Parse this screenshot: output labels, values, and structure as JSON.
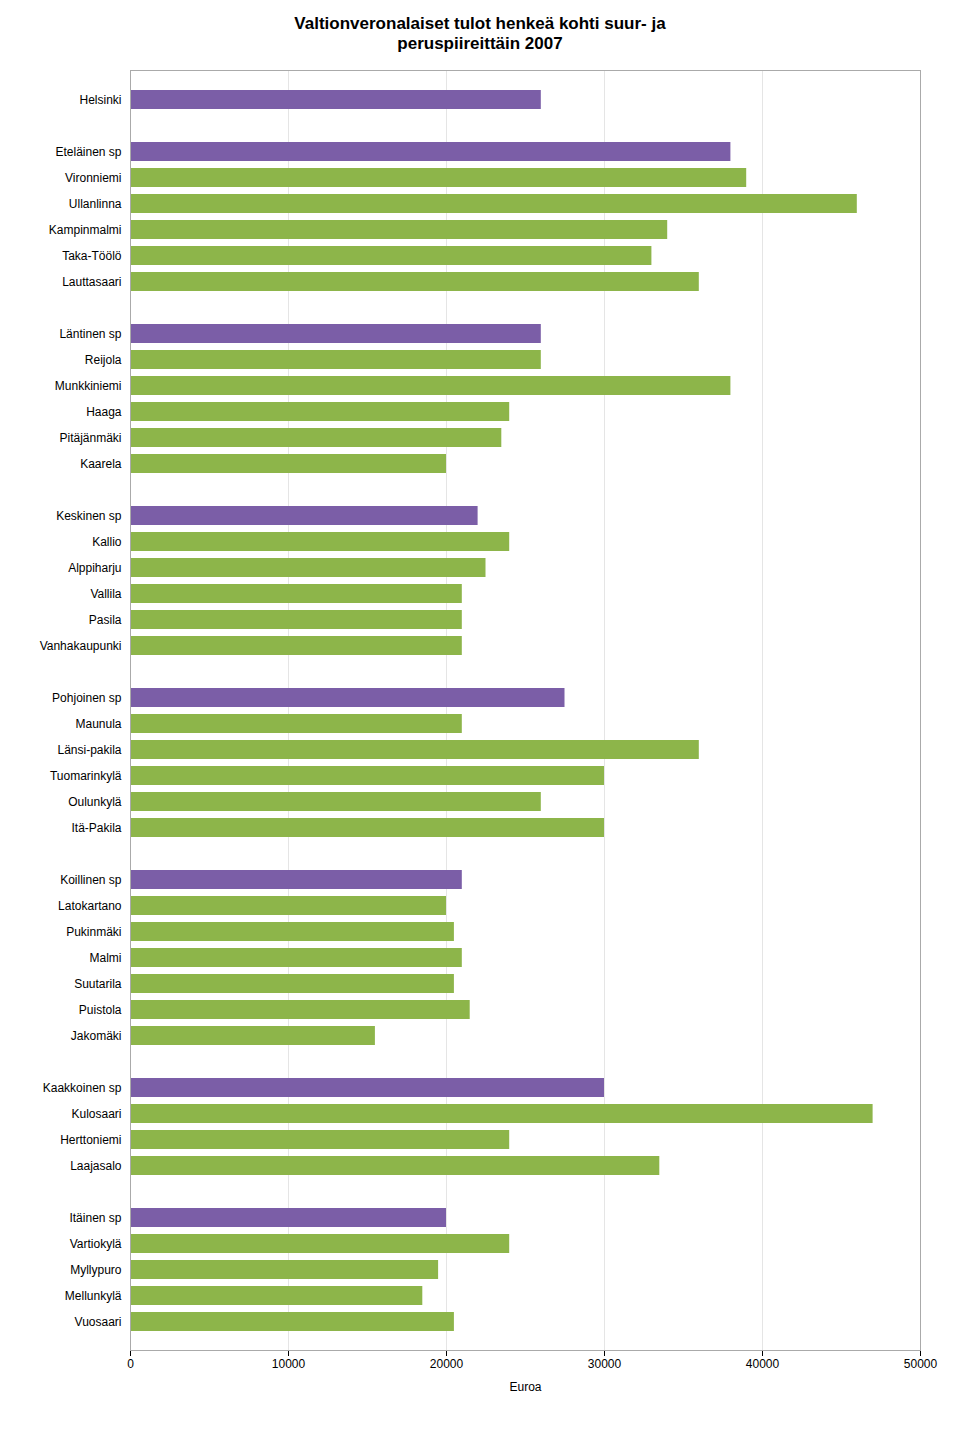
{
  "chart_data": {
    "type": "bar",
    "orientation": "horizontal",
    "title": "Valtionveronalaiset tulot henkeä kohti suur- ja\nperuspiireittäin 2007",
    "xlabel": "Euroa",
    "categories": [
      "Helsinki",
      null,
      "Eteläinen sp",
      "Vironniemi",
      "Ullanlinna",
      "Kampinmalmi",
      "Taka-Töölö",
      "Lauttasaari",
      null,
      "Läntinen sp",
      "Reijola",
      "Munkkiniemi",
      "Haaga",
      "Pitäjänmäki",
      "Kaarela",
      null,
      "Keskinen sp",
      "Kallio",
      "Alppiharju",
      "Vallila",
      "Pasila",
      "Vanhakaupunki",
      null,
      "Pohjoinen sp",
      "Maunula",
      "Länsi-pakila",
      "Tuomarinkylä",
      "Oulunkylä",
      "Itä-Pakila",
      null,
      "Koillinen sp",
      "Latokartano",
      "Pukinmäki",
      "Malmi",
      "Suutarila",
      "Puistola",
      "Jakomäki",
      null,
      "Kaakkoinen sp",
      "Kulosaari",
      "Herttoniemi",
      "Laajasalo",
      null,
      "Itäinen sp",
      "Vartiokylä",
      "Myllypuro",
      "Mellunkylä",
      "Vuosaari"
    ],
    "values": [
      26000,
      null,
      38000,
      39000,
      46000,
      34000,
      33000,
      36000,
      null,
      26000,
      26000,
      38000,
      24000,
      23500,
      20000,
      null,
      22000,
      24000,
      22500,
      21000,
      21000,
      21000,
      null,
      27500,
      21000,
      36000,
      30000,
      26000,
      30000,
      null,
      21000,
      20000,
      20500,
      21000,
      20500,
      21500,
      15500,
      null,
      30000,
      47000,
      24000,
      33500,
      null,
      20000,
      24000,
      19500,
      18500,
      20500
    ],
    "colors": [
      "#7b5ea7",
      null,
      "#7b5ea7",
      "#8db54a",
      "#8db54a",
      "#8db54a",
      "#8db54a",
      "#8db54a",
      null,
      "#7b5ea7",
      "#8db54a",
      "#8db54a",
      "#8db54a",
      "#8db54a",
      "#8db54a",
      null,
      "#7b5ea7",
      "#8db54a",
      "#8db54a",
      "#8db54a",
      "#8db54a",
      "#8db54a",
      null,
      "#7b5ea7",
      "#8db54a",
      "#8db54a",
      "#8db54a",
      "#8db54a",
      "#8db54a",
      null,
      "#7b5ea7",
      "#8db54a",
      "#8db54a",
      "#8db54a",
      "#8db54a",
      "#8db54a",
      "#8db54a",
      null,
      "#7b5ea7",
      "#8db54a",
      "#8db54a",
      "#8db54a",
      null,
      "#7b5ea7",
      "#8db54a",
      "#8db54a",
      "#8db54a",
      "#8db54a"
    ],
    "xlim": [
      0,
      50000
    ],
    "xticks": [
      0,
      10000,
      20000,
      30000,
      40000,
      50000
    ],
    "grid": true
  }
}
